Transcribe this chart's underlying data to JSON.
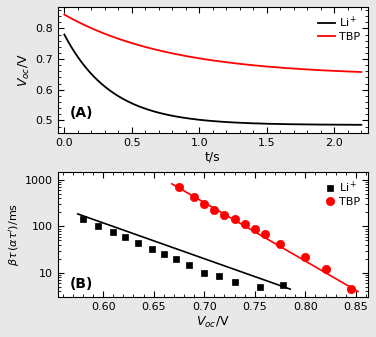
{
  "panel_A": {
    "black_v0": 0.78,
    "black_vinf": 0.485,
    "black_tau": 0.35,
    "red_v0": 0.845,
    "red_vinf": 0.645,
    "red_tau": 0.8,
    "xlabel": "t/s",
    "ylabel": "$V_{oc}$/V",
    "xlim": [
      -0.05,
      2.25
    ],
    "ylim": [
      0.46,
      0.87
    ],
    "yticks": [
      0.5,
      0.6,
      0.7,
      0.8
    ],
    "xticks": [
      0.0,
      0.5,
      1.0,
      1.5,
      2.0
    ],
    "label": "(A)",
    "legend_black": "Li$^+$",
    "legend_red": "TBP"
  },
  "panel_B": {
    "black_x": [
      0.58,
      0.595,
      0.61,
      0.622,
      0.635,
      0.648,
      0.66,
      0.672,
      0.685,
      0.7,
      0.715,
      0.73,
      0.755,
      0.778
    ],
    "black_y": [
      145,
      100,
      75,
      58,
      44,
      33,
      25,
      20,
      15,
      10,
      8.5,
      6.5,
      5.0,
      5.5
    ],
    "red_x": [
      0.675,
      0.69,
      0.7,
      0.71,
      0.72,
      0.73,
      0.74,
      0.75,
      0.76,
      0.775,
      0.8,
      0.82,
      0.845
    ],
    "red_y": [
      700,
      430,
      310,
      220,
      180,
      145,
      115,
      90,
      68,
      42,
      22,
      12,
      4.5
    ],
    "black_fit_x": [
      0.575,
      0.785
    ],
    "black_fit_y": [
      185,
      4.5
    ],
    "red_fit_x": [
      0.668,
      0.852
    ],
    "red_fit_y": [
      820,
      4.0
    ],
    "xlabel": "$V_{oc}$/V",
    "ylabel": "$\\beta\\tau\\,(\\alpha\\tau^{\\prime})$/ms",
    "xlim": [
      0.555,
      0.862
    ],
    "ylim_log": [
      3.0,
      1500
    ],
    "xticks": [
      0.6,
      0.65,
      0.7,
      0.75,
      0.8,
      0.85
    ],
    "yticks": [
      10,
      100,
      1000
    ],
    "label": "(B)",
    "legend_black": "Li$^+$",
    "legend_red": "TBP"
  },
  "figure": {
    "facecolor": "#e8e8e8"
  }
}
